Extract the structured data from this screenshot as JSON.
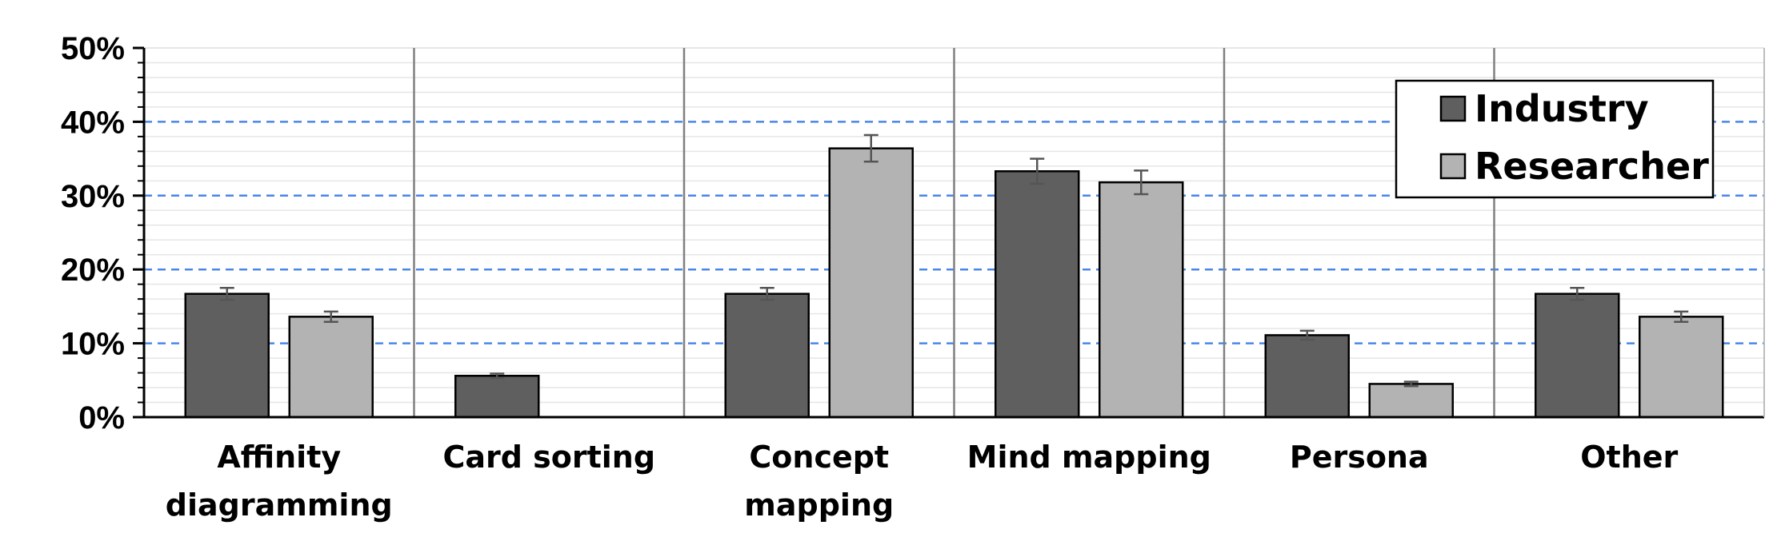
{
  "chart_data": {
    "type": "bar",
    "categories": [
      "Affinity diagramming",
      "Card sorting",
      "Concept mapping",
      "Mind mapping",
      "Persona",
      "Other"
    ],
    "category_lines": [
      [
        "Affinity",
        "diagramming"
      ],
      [
        "Card sorting"
      ],
      [
        "Concept",
        "mapping"
      ],
      [
        "Mind mapping"
      ],
      [
        "Persona"
      ],
      [
        "Other"
      ]
    ],
    "series": [
      {
        "name": "Industry",
        "color": "#5f5f5f",
        "values": [
          16.7,
          5.6,
          16.7,
          33.3,
          11.1,
          16.7
        ],
        "errors": [
          0.8,
          0.3,
          0.8,
          1.7,
          0.6,
          0.8
        ]
      },
      {
        "name": "Researcher",
        "color": "#b3b3b3",
        "values": [
          13.6,
          0,
          36.4,
          31.8,
          4.5,
          13.6
        ],
        "errors": [
          0.7,
          0,
          1.8,
          1.6,
          0.3,
          0.7
        ]
      }
    ],
    "ylim": [
      0,
      50
    ],
    "yticks": [
      "0%",
      "10%",
      "20%",
      "30%",
      "40%",
      "50%"
    ],
    "ytick_values": [
      0,
      10,
      20,
      30,
      40,
      50
    ],
    "dashed_gridlines": [
      10,
      20,
      30,
      40
    ],
    "minor_gridline_step": 2,
    "legend_position": "top-right",
    "title": "",
    "xlabel": "",
    "ylabel": "",
    "colors": {
      "major_grid": "#4a86e8",
      "minor_grid": "#e6e6e6",
      "separator": "#808080",
      "error_bar": "#555555"
    }
  }
}
